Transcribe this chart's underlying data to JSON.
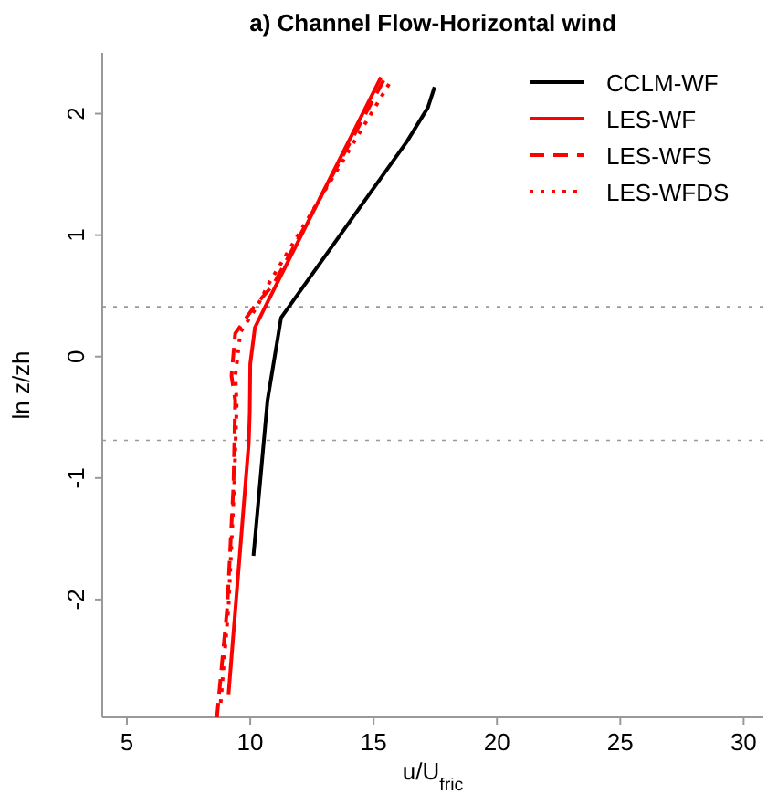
{
  "chart_data": {
    "type": "line",
    "title": "a) Channel Flow-Horizontal wind",
    "xlabel": "u/U$_{fric}$",
    "ylabel": "ln z/zh",
    "xlim": [
      4,
      30.8
    ],
    "ylim": [
      -2.97,
      2.5
    ],
    "xticks": [
      5,
      10,
      15,
      20,
      25,
      30
    ],
    "yticks": [
      -2,
      -1,
      0,
      1,
      2
    ],
    "legend": "top right",
    "grid": false,
    "ref_lines": [
      {
        "axis": "y",
        "value": 0.41,
        "color": "#999999",
        "line_style": "dotted"
      },
      {
        "axis": "y",
        "value": -0.69,
        "color": "#999999",
        "line_style": "dotted"
      }
    ],
    "series": [
      {
        "name": "CCLM-WF",
        "color": "#000000",
        "line_style": "solid",
        "x": [
          10.13,
          10.7,
          11.25,
          16.35,
          17.2,
          17.47
        ],
        "values": [
          -1.64,
          -0.36,
          0.32,
          1.77,
          2.05,
          2.22
        ]
      },
      {
        "name": "LES-WF",
        "color": "#ff0000",
        "line_style": "solid",
        "x": [
          9.12,
          9.94,
          9.98,
          10.0,
          10.19,
          10.68,
          15.3
        ],
        "values": [
          -2.78,
          -0.71,
          -0.46,
          -0.06,
          0.24,
          0.44,
          2.3
        ]
      },
      {
        "name": "LES-WFS",
        "color": "#ff0000",
        "line_style": "dashed",
        "x": [
          8.65,
          9.07,
          9.32,
          9.39,
          9.24,
          9.39,
          10.19,
          10.93,
          15.5
        ],
        "values": [
          -2.97,
          -2.06,
          -1.06,
          -0.36,
          -0.16,
          0.19,
          0.42,
          0.59,
          2.31
        ]
      },
      {
        "name": "LES-WFDS",
        "color": "#ff0000",
        "line_style": "dotted",
        "x": [
          8.8,
          9.12,
          9.35,
          9.45,
          9.4,
          9.6,
          10.3,
          10.75,
          15.7
        ],
        "values": [
          -2.85,
          -2.06,
          -1.06,
          -0.4,
          -0.15,
          0.2,
          0.42,
          0.6,
          2.27
        ]
      }
    ]
  }
}
